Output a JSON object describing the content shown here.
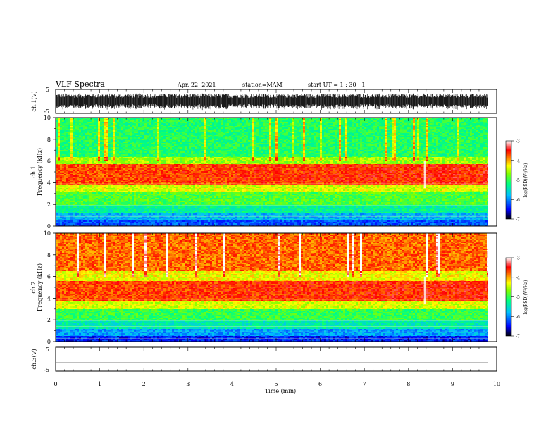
{
  "header": {
    "title": "VLF Spectra",
    "date": "Apr. 22, 2021",
    "station": "station=MAM",
    "start": "start UT =  1 : 30 : 1"
  },
  "colors": {
    "frame": "#000000",
    "spectrogram_scale": [
      "#000080",
      "#0000ff",
      "#00bfff",
      "#00ff80",
      "#80ff00",
      "#ffff00",
      "#ff8000",
      "#ff0000",
      "#ff5050",
      "#ffffff"
    ]
  },
  "chart_data": [
    {
      "id": "ch1-waveform",
      "type": "line",
      "ylabel": "ch.1(V)",
      "ylim": [
        -5,
        5
      ],
      "yticks": [
        "5",
        "-5"
      ],
      "xlim": [
        0,
        10
      ],
      "series": [
        {
          "x": [
            0,
            9.8
          ],
          "y_range": [
            -3,
            3
          ],
          "note": ""
        }
      ]
    },
    {
      "id": "ch1-spectrogram",
      "type": "heatmap",
      "ylabel": "ch.1\nFrequency (kHz)",
      "ylabel_lines": [
        "ch.1",
        "Frequency (kHz)"
      ],
      "ylim": [
        0,
        10
      ],
      "yticks": [
        "0",
        "2",
        "4",
        "6",
        "8",
        "10"
      ],
      "xlim": [
        0,
        10
      ],
      "data_end_min": 9.8,
      "colorbar": {
        "label": "log(PSD)(V²/Hz)",
        "range": [
          -7,
          -3
        ],
        "ticks": [
          "-3",
          "-4",
          "-5",
          "-6",
          "-7"
        ]
      },
      "bands_khz": [
        {
          "from": 0,
          "to": 0.6,
          "level": -6.2
        },
        {
          "from": 0.6,
          "to": 1.2,
          "level": -5.8
        },
        {
          "from": 1.2,
          "to": 2.0,
          "level": -5.3
        },
        {
          "from": 2.0,
          "to": 3.2,
          "level": -4.9
        },
        {
          "from": 3.2,
          "to": 3.8,
          "level": -4.4
        },
        {
          "from": 3.8,
          "to": 5.8,
          "level": -3.7
        },
        {
          "from": 5.8,
          "to": 6.4,
          "level": -4.6
        },
        {
          "from": 6.4,
          "to": 10,
          "level": -5.1
        }
      ]
    },
    {
      "id": "ch2-spectrogram",
      "type": "heatmap",
      "ylabel_lines": [
        "ch.2",
        "Frequency (kHz)"
      ],
      "ylim": [
        0,
        10
      ],
      "yticks": [
        "0",
        "2",
        "4",
        "6",
        "8",
        "10"
      ],
      "xlim": [
        0,
        10
      ],
      "data_end_min": 9.8,
      "colorbar": {
        "label": "log(PSD)(V²/Hz)",
        "range": [
          -7,
          -3
        ],
        "ticks": [
          "-3",
          "-4",
          "-5",
          "-6",
          "-7"
        ]
      },
      "bands_khz": [
        {
          "from": 0,
          "to": 0.6,
          "level": -6.4
        },
        {
          "from": 0.6,
          "to": 1.2,
          "level": -5.9
        },
        {
          "from": 1.2,
          "to": 2.0,
          "level": -5.4
        },
        {
          "from": 2.0,
          "to": 3.0,
          "level": -5.0
        },
        {
          "from": 3.0,
          "to": 3.8,
          "level": -4.4
        },
        {
          "from": 3.8,
          "to": 5.6,
          "level": -3.7
        },
        {
          "from": 5.6,
          "to": 6.6,
          "level": -4.3
        },
        {
          "from": 6.6,
          "to": 10,
          "level": -3.8
        }
      ]
    },
    {
      "id": "ch3-waveform",
      "type": "line",
      "ylabel": "ch.3(V)",
      "ylim": [
        -5,
        5
      ],
      "yticks": [
        "5",
        "-5"
      ],
      "xlim": [
        0,
        10
      ],
      "series": [
        {
          "x": [
            0,
            9.8
          ],
          "y": [
            -1.5,
            -1.5
          ]
        }
      ]
    }
  ],
  "xaxis": {
    "label": "Time (min)",
    "ticks": [
      "0",
      "1",
      "2",
      "3",
      "4",
      "5",
      "6",
      "7",
      "8",
      "9",
      "10"
    ]
  }
}
